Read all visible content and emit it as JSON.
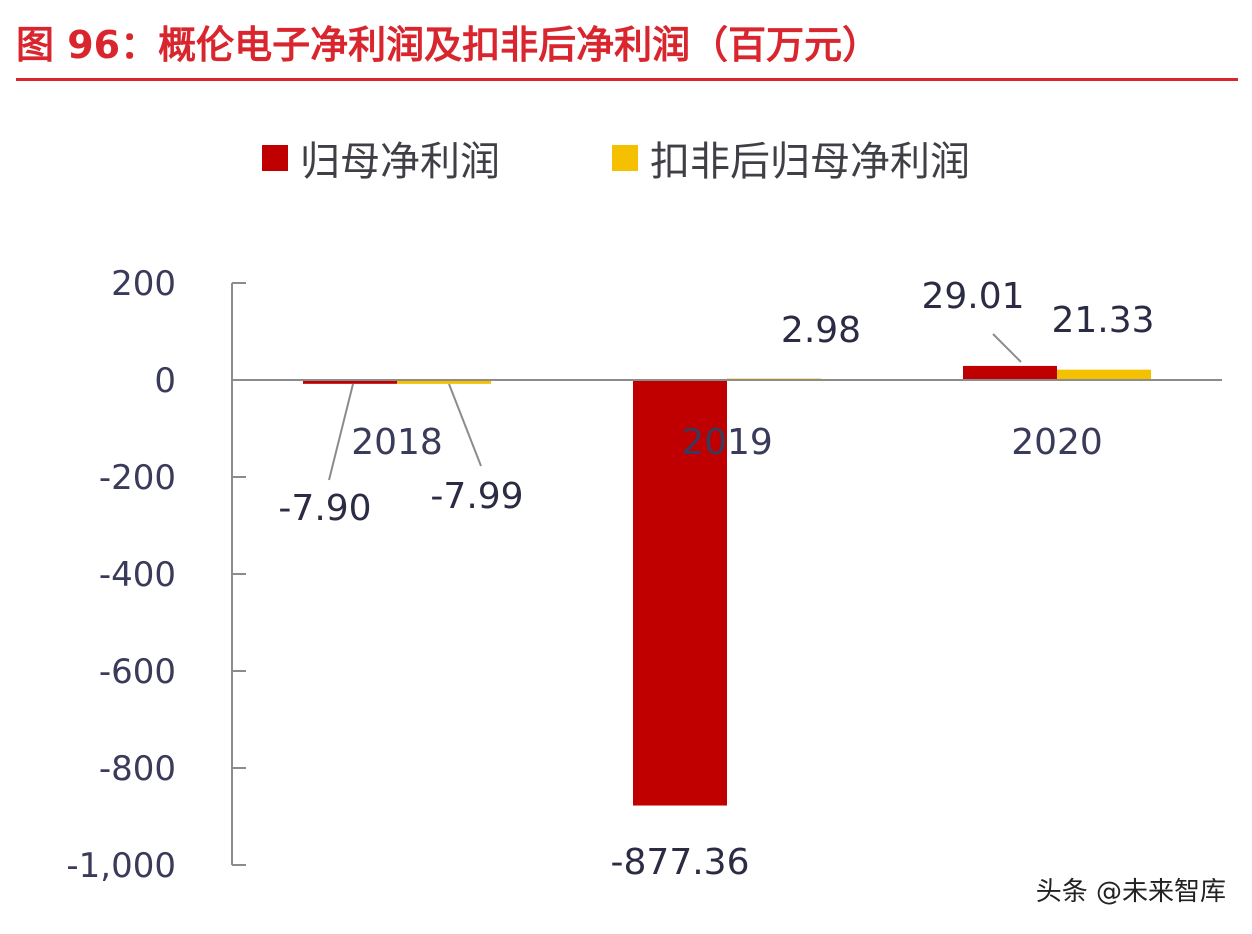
{
  "header": {
    "title": "图 96：概伦电子净利润及扣非后净利润（百万元）"
  },
  "watermark": "头条 @未来智库",
  "colors": {
    "title": "#d9262e",
    "series1": "#c00000",
    "series2": "#f5c000",
    "axis": "#8c8c8c",
    "text": "#3a3a5a"
  },
  "chart_data": {
    "type": "bar",
    "categories": [
      "2018",
      "2019",
      "2020"
    ],
    "series": [
      {
        "name": "归母净利润",
        "values": [
          -7.9,
          -877.36,
          29.01
        ],
        "labels": [
          "-7.90",
          "-877.36",
          "29.01"
        ]
      },
      {
        "name": "扣非后归母净利润",
        "values": [
          -7.99,
          2.98,
          21.33
        ],
        "labels": [
          "-7.99",
          "2.98",
          "21.33"
        ]
      }
    ],
    "yticks": [
      "200",
      "0",
      "-200",
      "-400",
      "-600",
      "-800",
      "-1,000"
    ],
    "ylim": [
      -1000,
      200
    ],
    "legend_position": "top",
    "grid": false
  }
}
